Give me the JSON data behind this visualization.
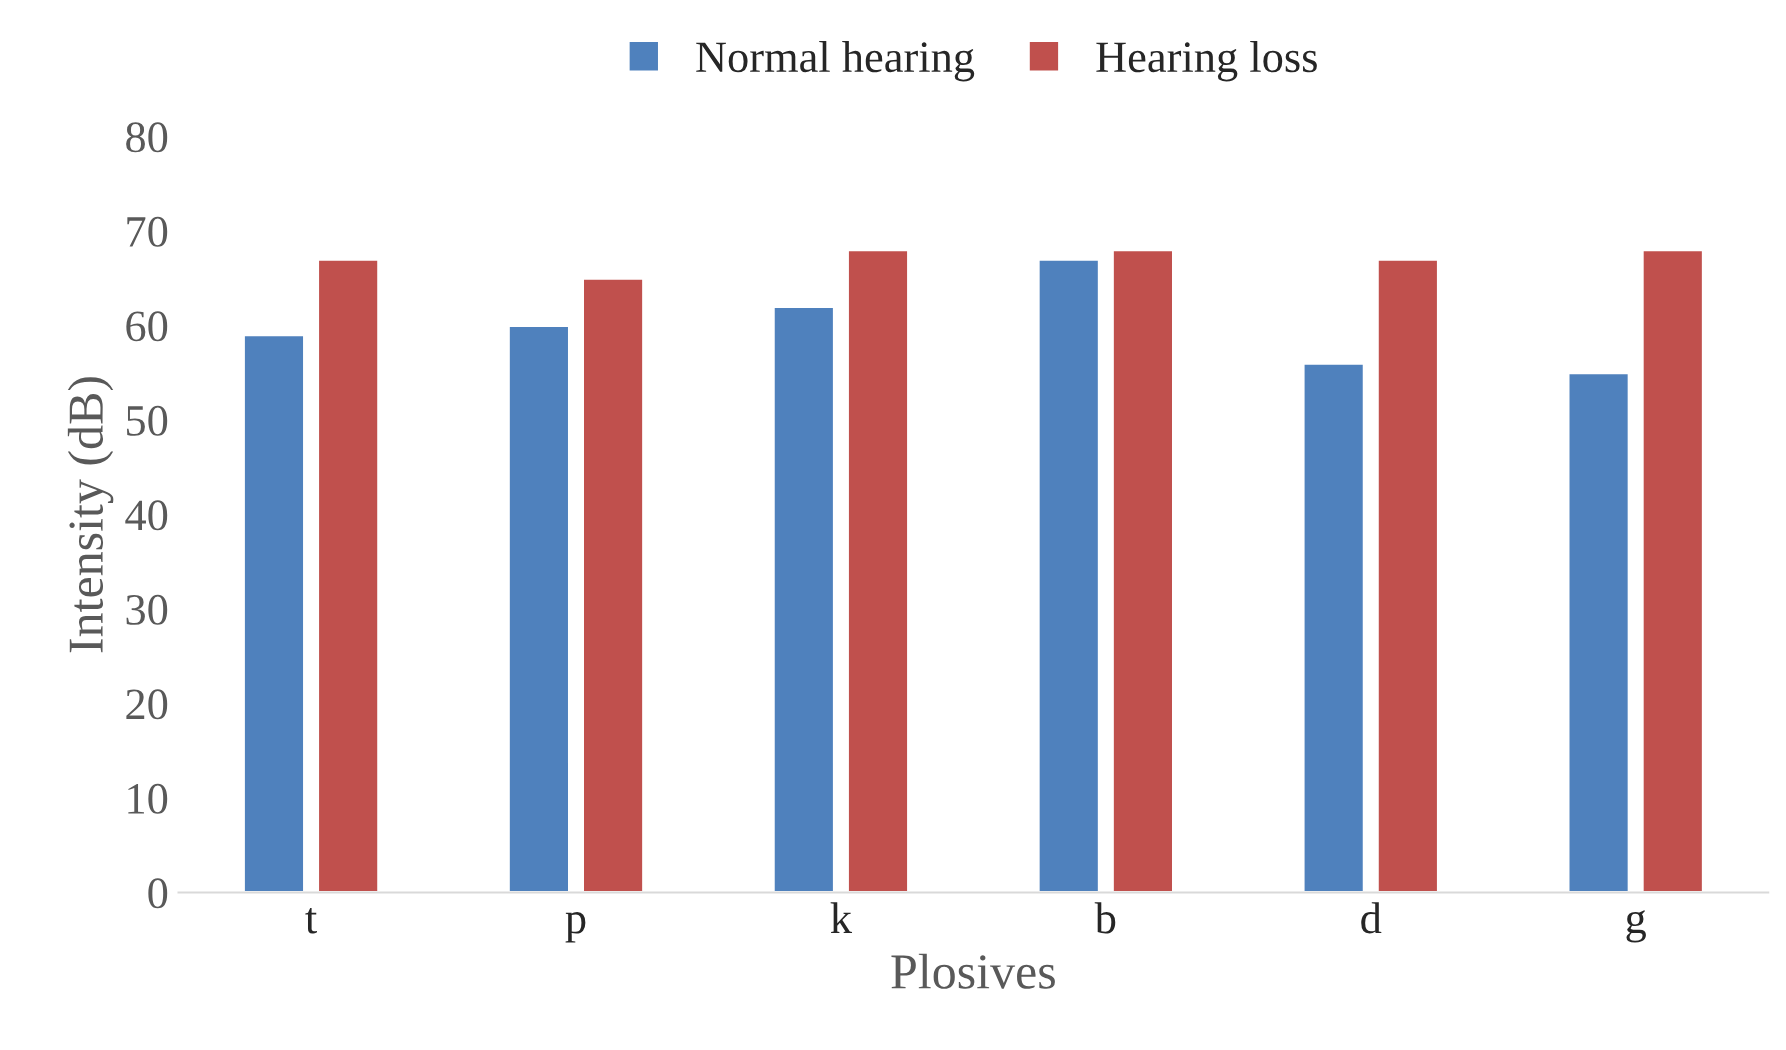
{
  "chart_data": {
    "type": "bar",
    "xlabel": "Plosives",
    "ylabel": "Intensity (dB)",
    "categories": [
      "t",
      "p",
      "k",
      "b",
      "d",
      "g"
    ],
    "series": [
      {
        "name": "Normal hearing",
        "color": "#4f81bd",
        "values": [
          59,
          60,
          62,
          67,
          56,
          55
        ]
      },
      {
        "name": "Hearing loss",
        "color": "#c0504d",
        "values": [
          67,
          65,
          68,
          68,
          67,
          68
        ]
      }
    ],
    "ylim": [
      0,
      80
    ],
    "yticks": [
      0,
      10,
      20,
      30,
      40,
      50,
      60,
      70,
      80
    ],
    "grid": false,
    "legend": "top"
  }
}
